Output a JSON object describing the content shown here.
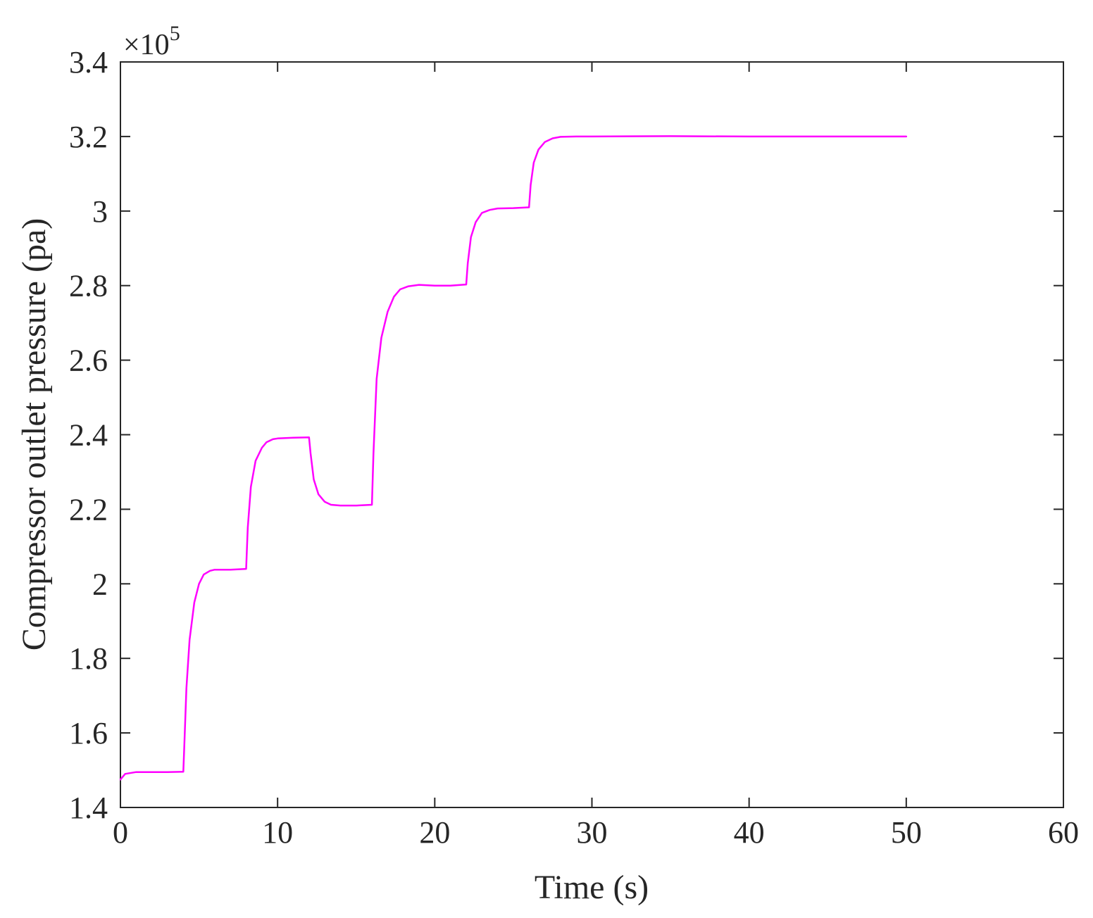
{
  "chart_data": {
    "type": "line",
    "title": "",
    "xlabel": "Time (s)",
    "ylabel": "Compressor outlet pressure (pa)",
    "y_exponent_label": "×10",
    "y_exponent_power": "5",
    "xlim": [
      0,
      60
    ],
    "ylim": [
      1.4,
      3.4
    ],
    "y_scale_factor": 100000,
    "x_ticks": [
      "0",
      "10",
      "20",
      "30",
      "40",
      "50",
      "60"
    ],
    "y_ticks": [
      "1.4",
      "1.6",
      "1.8",
      "2",
      "2.2",
      "2.4",
      "2.6",
      "2.8",
      "3",
      "3.2",
      "3.4"
    ],
    "grid": false,
    "legend": "none",
    "series": [
      {
        "color": "#ff00ff",
        "x": [
          0,
          0.3,
          1,
          2,
          3,
          4,
          4.05,
          4.2,
          4.4,
          4.7,
          5,
          5.3,
          5.7,
          6,
          7,
          8,
          8.1,
          8.3,
          8.6,
          9,
          9.3,
          9.7,
          10,
          11,
          12,
          12.1,
          12.3,
          12.6,
          13,
          13.4,
          14,
          15,
          16,
          16.1,
          16.3,
          16.6,
          17,
          17.4,
          17.8,
          18.3,
          19,
          20,
          21,
          22,
          22.1,
          22.3,
          22.6,
          23,
          23.5,
          24,
          25,
          26,
          26.1,
          26.3,
          26.6,
          27,
          27.5,
          28,
          29,
          30,
          35,
          40,
          45,
          50
        ],
        "y": [
          1.475,
          1.49,
          1.495,
          1.495,
          1.495,
          1.496,
          1.55,
          1.72,
          1.85,
          1.95,
          2.0,
          2.025,
          2.035,
          2.038,
          2.038,
          2.04,
          2.15,
          2.26,
          2.33,
          2.365,
          2.38,
          2.388,
          2.39,
          2.392,
          2.393,
          2.35,
          2.28,
          2.24,
          2.22,
          2.212,
          2.21,
          2.21,
          2.212,
          2.35,
          2.55,
          2.66,
          2.73,
          2.77,
          2.79,
          2.798,
          2.802,
          2.8,
          2.8,
          2.803,
          2.86,
          2.93,
          2.97,
          2.995,
          3.003,
          3.007,
          3.008,
          3.01,
          3.07,
          3.13,
          3.165,
          3.185,
          3.195,
          3.199,
          3.2,
          3.2,
          3.201,
          3.2,
          3.2,
          3.2
        ]
      }
    ]
  }
}
